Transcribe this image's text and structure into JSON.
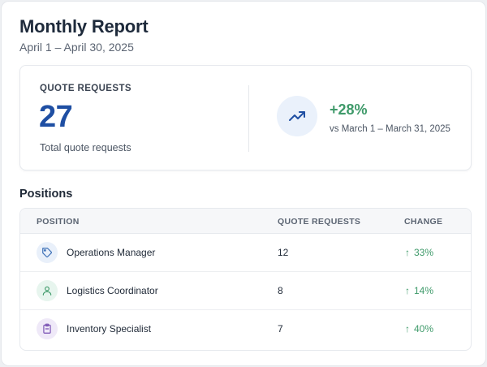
{
  "header": {
    "title": "Monthly Report",
    "date_range": "April 1 – April 30, 2025"
  },
  "summary": {
    "label": "QUOTE REQUESTS",
    "value": "27",
    "caption": "Total quote requests",
    "change": "+28%",
    "comparison": "vs March 1 – March 31, 2025",
    "trend_icon": "trending-up-icon"
  },
  "positions": {
    "section_title": "Positions",
    "columns": [
      "POSITION",
      "QUOTE REQUESTS",
      "CHANGE"
    ],
    "rows": [
      {
        "name": "Operations Manager",
        "requests": "12",
        "change": "33%",
        "icon": "tag-icon",
        "icon_color": "#3b6fb6",
        "icon_bg": "#e9f0fa"
      },
      {
        "name": "Logistics Coordinator",
        "requests": "8",
        "change": "14%",
        "icon": "user-icon",
        "icon_color": "#3f9a6a",
        "icon_bg": "#e7f5ee"
      },
      {
        "name": "Inventory Specialist",
        "requests": "7",
        "change": "40%",
        "icon": "clipboard-icon",
        "icon_color": "#7a52b3",
        "icon_bg": "#efe9f8"
      }
    ]
  },
  "colors": {
    "accent": "#1f4fa3",
    "positive": "#3f9a6a"
  }
}
